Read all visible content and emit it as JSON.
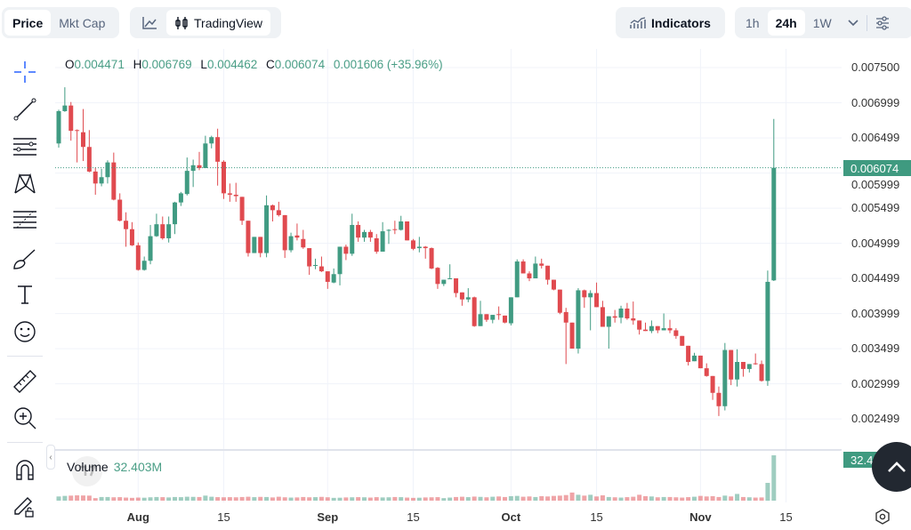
{
  "header": {
    "data_type_tabs": [
      {
        "label": "Price",
        "active": true
      },
      {
        "label": "Mkt Cap",
        "active": false
      }
    ],
    "chart_type": {
      "line_icon": "line-chart-icon",
      "tradingview_label": "TradingView",
      "tradingview_icon": "candlestick-icon"
    },
    "indicators_label": "Indicators",
    "timeframes": [
      {
        "label": "1h",
        "active": false
      },
      {
        "label": "24h",
        "active": true
      },
      {
        "label": "1W",
        "active": false
      }
    ]
  },
  "legend": {
    "o_label": "O",
    "o": "0.004471",
    "h_label": "H",
    "h": "0.006769",
    "l_label": "L",
    "l": "0.004462",
    "c_label": "C",
    "c": "0.006074",
    "change": "0.001606 (+35.96%)"
  },
  "volume_legend": {
    "label": "Volume",
    "value": "32.403M"
  },
  "price_tag": "0.006074",
  "volume_tag": "32.403M",
  "toolbar": [
    "crosshair-icon",
    "trend-line-icon",
    "horizontal-lines-icon",
    "pattern-icon",
    "fib-icon",
    "brush-icon",
    "text-icon",
    "emoji-icon",
    "ruler-icon",
    "zoom-in-icon",
    "magnet-icon",
    "lock-drawings-icon"
  ],
  "colors": {
    "up": "#409b82",
    "down": "#e04a4f",
    "accent": "#2962ff"
  },
  "chart_data": {
    "type": "candlestick",
    "interval": "24h",
    "y_ticks": [
      "0.007500",
      "0.006999",
      "0.006499",
      "0.005999",
      "0.005499",
      "0.004999",
      "0.004499",
      "0.003999",
      "0.003499",
      "0.002999",
      "0.002499"
    ],
    "ylim": [
      0.00225,
      0.0077
    ],
    "x_ticks": [
      {
        "label": "Aug",
        "major": true
      },
      {
        "label": "15",
        "major": false
      },
      {
        "label": "Sep",
        "major": true
      },
      {
        "label": "15",
        "major": false
      },
      {
        "label": "Oct",
        "major": true
      },
      {
        "label": "15",
        "major": false
      },
      {
        "label": "Nov",
        "major": true
      },
      {
        "label": "15",
        "major": false
      }
    ],
    "last_price": 0.006074,
    "candles_ohlc": [
      [
        0.00642,
        0.0069,
        0.00636,
        0.00688
      ],
      [
        0.00688,
        0.00722,
        0.00687,
        0.00696
      ],
      [
        0.00696,
        0.00701,
        0.00646,
        0.0066
      ],
      [
        0.00661,
        0.00662,
        0.00615,
        0.0066
      ],
      [
        0.00658,
        0.00691,
        0.00617,
        0.00637
      ],
      [
        0.00637,
        0.00661,
        0.00601,
        0.00602
      ],
      [
        0.00602,
        0.00608,
        0.00569,
        0.00585
      ],
      [
        0.00585,
        0.00606,
        0.00581,
        0.00594
      ],
      [
        0.00594,
        0.00618,
        0.00585,
        0.00615
      ],
      [
        0.00615,
        0.00629,
        0.00561,
        0.00562
      ],
      [
        0.00562,
        0.00571,
        0.00531,
        0.00532
      ],
      [
        0.00532,
        0.00544,
        0.00495,
        0.0052
      ],
      [
        0.0052,
        0.0053,
        0.00496,
        0.00497
      ],
      [
        0.00497,
        0.00501,
        0.00461,
        0.00462
      ],
      [
        0.00462,
        0.00481,
        0.00461,
        0.00475
      ],
      [
        0.00475,
        0.00526,
        0.0047,
        0.0051
      ],
      [
        0.0051,
        0.00542,
        0.00509,
        0.00527
      ],
      [
        0.00527,
        0.00538,
        0.00505,
        0.00507
      ],
      [
        0.00507,
        0.00538,
        0.00501,
        0.00527
      ],
      [
        0.00527,
        0.00559,
        0.00513,
        0.00558
      ],
      [
        0.00558,
        0.00573,
        0.00553,
        0.00571
      ],
      [
        0.0057,
        0.00622,
        0.00568,
        0.00603
      ],
      [
        0.00603,
        0.00619,
        0.0058,
        0.00611
      ],
      [
        0.00611,
        0.0063,
        0.00604,
        0.00607
      ],
      [
        0.00607,
        0.00653,
        0.00607,
        0.00642
      ],
      [
        0.00642,
        0.00653,
        0.00635,
        0.00651
      ],
      [
        0.00651,
        0.00663,
        0.00582,
        0.00616
      ],
      [
        0.00616,
        0.00618,
        0.00563,
        0.00571
      ],
      [
        0.00571,
        0.00585,
        0.00559,
        0.00569
      ],
      [
        0.00569,
        0.00586,
        0.00559,
        0.00567
      ],
      [
        0.00566,
        0.00566,
        0.00526,
        0.00532
      ],
      [
        0.00532,
        0.00532,
        0.00481,
        0.00486
      ],
      [
        0.00486,
        0.00509,
        0.00486,
        0.00509
      ],
      [
        0.00509,
        0.00509,
        0.0048,
        0.00486
      ],
      [
        0.00486,
        0.00568,
        0.0048,
        0.00554
      ],
      [
        0.00554,
        0.00555,
        0.00531,
        0.00547
      ],
      [
        0.00547,
        0.00559,
        0.00538,
        0.0054
      ],
      [
        0.0054,
        0.0054,
        0.00479,
        0.0049
      ],
      [
        0.0049,
        0.00515,
        0.00487,
        0.0051
      ],
      [
        0.00511,
        0.00528,
        0.00504,
        0.00508
      ],
      [
        0.00506,
        0.00519,
        0.00492,
        0.00494
      ],
      [
        0.00493,
        0.00493,
        0.00455,
        0.00467
      ],
      [
        0.00468,
        0.00478,
        0.00463,
        0.00469
      ],
      [
        0.00467,
        0.00481,
        0.00459,
        0.0046
      ],
      [
        0.0046,
        0.0046,
        0.00435,
        0.00445
      ],
      [
        0.00444,
        0.00464,
        0.00443,
        0.00456
      ],
      [
        0.00456,
        0.00495,
        0.0044,
        0.00495
      ],
      [
        0.00495,
        0.00498,
        0.00476,
        0.00485
      ],
      [
        0.00485,
        0.00542,
        0.00482,
        0.00526
      ],
      [
        0.00526,
        0.00531,
        0.00502,
        0.00508
      ],
      [
        0.00508,
        0.00519,
        0.00502,
        0.00516
      ],
      [
        0.00516,
        0.00519,
        0.00502,
        0.00508
      ],
      [
        0.00507,
        0.00513,
        0.00485,
        0.00488
      ],
      [
        0.00488,
        0.0053,
        0.00488,
        0.00517
      ],
      [
        0.00518,
        0.0052,
        0.00499,
        0.00519
      ],
      [
        0.0052,
        0.00532,
        0.00513,
        0.00519
      ],
      [
        0.00519,
        0.00539,
        0.00518,
        0.00531
      ],
      [
        0.00531,
        0.00531,
        0.00504,
        0.00504
      ],
      [
        0.00504,
        0.00506,
        0.0049,
        0.00492
      ],
      [
        0.00493,
        0.00509,
        0.00487,
        0.00495
      ],
      [
        0.00495,
        0.00496,
        0.00478,
        0.00493
      ],
      [
        0.00493,
        0.00494,
        0.00463,
        0.00464
      ],
      [
        0.00465,
        0.00466,
        0.00435,
        0.00442
      ],
      [
        0.00442,
        0.00448,
        0.00439,
        0.00448
      ],
      [
        0.00449,
        0.0047,
        0.00449,
        0.0045
      ],
      [
        0.0045,
        0.0045,
        0.00423,
        0.00429
      ],
      [
        0.0043,
        0.0043,
        0.00411,
        0.0042
      ],
      [
        0.0042,
        0.00436,
        0.00416,
        0.00423
      ],
      [
        0.00423,
        0.00424,
        0.00381,
        0.00382
      ],
      [
        0.00382,
        0.00418,
        0.00382,
        0.00399
      ],
      [
        0.00399,
        0.00399,
        0.00388,
        0.00391
      ],
      [
        0.00391,
        0.00398,
        0.00386,
        0.00398
      ],
      [
        0.00399,
        0.0041,
        0.00391,
        0.00398
      ],
      [
        0.00397,
        0.00397,
        0.00386,
        0.00387
      ],
      [
        0.00386,
        0.00423,
        0.00383,
        0.00423
      ],
      [
        0.00423,
        0.00477,
        0.00423,
        0.00474
      ],
      [
        0.00474,
        0.00477,
        0.00457,
        0.00457
      ],
      [
        0.00457,
        0.0046,
        0.00446,
        0.0045
      ],
      [
        0.0045,
        0.00481,
        0.0045,
        0.00471
      ],
      [
        0.00471,
        0.00478,
        0.00464,
        0.00468
      ],
      [
        0.00468,
        0.00468,
        0.00441,
        0.00448
      ],
      [
        0.00448,
        0.00448,
        0.00433,
        0.00434
      ],
      [
        0.00434,
        0.00434,
        0.00399,
        0.00401
      ],
      [
        0.00402,
        0.00408,
        0.00328,
        0.00387
      ],
      [
        0.00387,
        0.00387,
        0.0035,
        0.0035
      ],
      [
        0.0035,
        0.00436,
        0.00343,
        0.00433
      ],
      [
        0.00433,
        0.00434,
        0.00408,
        0.00423
      ],
      [
        0.00423,
        0.00433,
        0.00376,
        0.00429
      ],
      [
        0.00429,
        0.00444,
        0.00409,
        0.00409
      ],
      [
        0.00409,
        0.00418,
        0.00381,
        0.00381
      ],
      [
        0.00381,
        0.00396,
        0.0035,
        0.00396
      ],
      [
        0.00396,
        0.00405,
        0.00387,
        0.00394
      ],
      [
        0.00394,
        0.00411,
        0.00386,
        0.00407
      ],
      [
        0.00407,
        0.00415,
        0.00391,
        0.00393
      ],
      [
        0.00393,
        0.00417,
        0.00384,
        0.0039
      ],
      [
        0.0039,
        0.0039,
        0.0037,
        0.00377
      ],
      [
        0.00377,
        0.00387,
        0.00375,
        0.00375
      ],
      [
        0.00375,
        0.0039,
        0.00372,
        0.00382
      ],
      [
        0.00382,
        0.00382,
        0.00372,
        0.00376
      ],
      [
        0.00376,
        0.004,
        0.00376,
        0.00379
      ],
      [
        0.00379,
        0.00391,
        0.00372,
        0.00376
      ],
      [
        0.00376,
        0.00379,
        0.00364,
        0.00368
      ],
      [
        0.00368,
        0.00368,
        0.00354,
        0.00354
      ],
      [
        0.00354,
        0.00354,
        0.00326,
        0.00331
      ],
      [
        0.00332,
        0.00344,
        0.00332,
        0.0034
      ],
      [
        0.0034,
        0.0034,
        0.00322,
        0.00322
      ],
      [
        0.00322,
        0.00329,
        0.0031,
        0.00311
      ],
      [
        0.00311,
        0.00311,
        0.00277,
        0.00287
      ],
      [
        0.00287,
        0.00296,
        0.00254,
        0.00268
      ],
      [
        0.00268,
        0.00358,
        0.00262,
        0.00348
      ],
      [
        0.00348,
        0.00348,
        0.00298,
        0.00306
      ],
      [
        0.00306,
        0.00349,
        0.00296,
        0.00331
      ],
      [
        0.00331,
        0.00331,
        0.0031,
        0.00321
      ],
      [
        0.00321,
        0.00328,
        0.00316,
        0.00328
      ],
      [
        0.00329,
        0.00343,
        0.00327,
        0.00328
      ],
      [
        0.00328,
        0.00333,
        0.00303,
        0.00304
      ],
      [
        0.00304,
        0.00461,
        0.00297,
        0.00445
      ],
      [
        0.004471,
        0.006769,
        0.004462,
        0.006074
      ]
    ],
    "volume_millions": [
      3.0,
      3.4,
      3.6,
      3.8,
      3.7,
      3.6,
      1.8,
      2.6,
      2.6,
      2.4,
      2.5,
      2.2,
      2.0,
      2.2,
      2.1,
      2.4,
      2.6,
      2.5,
      2.3,
      2.6,
      2.5,
      2.8,
      2.7,
      2.6,
      3.6,
      2.8,
      2.5,
      2.4,
      2.5,
      2.4,
      2.6,
      2.8,
      2.5,
      2.7,
      2.6,
      2.3,
      2.8,
      2.4,
      2.2,
      2.3,
      2.6,
      2.4,
      2.5,
      2.7,
      2.4,
      2.0,
      2.1,
      2.3,
      2.4,
      2.5,
      2.4,
      2.2,
      2.5,
      2.3,
      2.4,
      2.6,
      2.5,
      2.2,
      2.0,
      2.1,
      2.3,
      2.4,
      2.5,
      1.8,
      2.2,
      2.6,
      2.8,
      2.5,
      2.9,
      2.7,
      2.4,
      2.8,
      3.0,
      2.6,
      3.2,
      3.4,
      2.8,
      3.0,
      2.6,
      3.2,
      3.0,
      3.4,
      3.6,
      4.0,
      5.8,
      4.2,
      3.6,
      4.2,
      3.0,
      3.8,
      2.6,
      2.4,
      2.2,
      2.5,
      2.8,
      4.2,
      3.2,
      3.0,
      2.4,
      2.6,
      2.6,
      2.4,
      2.2,
      2.5,
      2.8,
      3.4,
      3.0,
      3.2,
      2.6,
      3.6,
      3.0,
      4.8,
      2.6,
      2.4,
      2.2,
      2.3,
      12.7,
      32.403
    ]
  }
}
